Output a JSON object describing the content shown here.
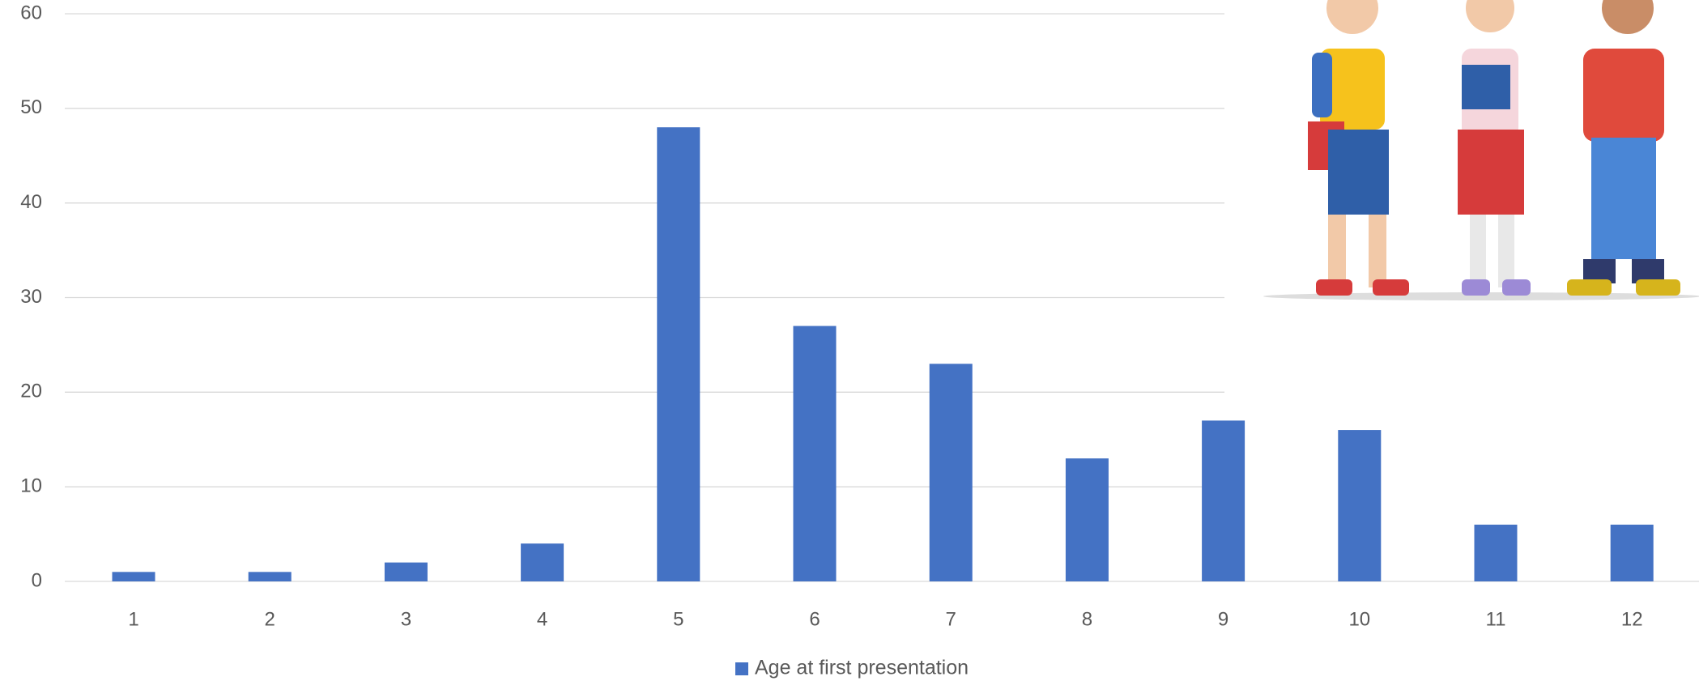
{
  "chart_data": {
    "type": "bar",
    "categories": [
      "1",
      "2",
      "3",
      "4",
      "5",
      "6",
      "7",
      "8",
      "9",
      "10",
      "11",
      "12"
    ],
    "series": [
      {
        "name": "Age at first presentation",
        "color": "#4472c4",
        "values": [
          1,
          1,
          2,
          4,
          48,
          27,
          23,
          13,
          17,
          16,
          6,
          6
        ]
      }
    ],
    "ylim": [
      0,
      60
    ],
    "yticks": [
      0,
      10,
      20,
      30,
      40,
      50,
      60
    ],
    "grid": true,
    "legend": "bottom"
  }
}
